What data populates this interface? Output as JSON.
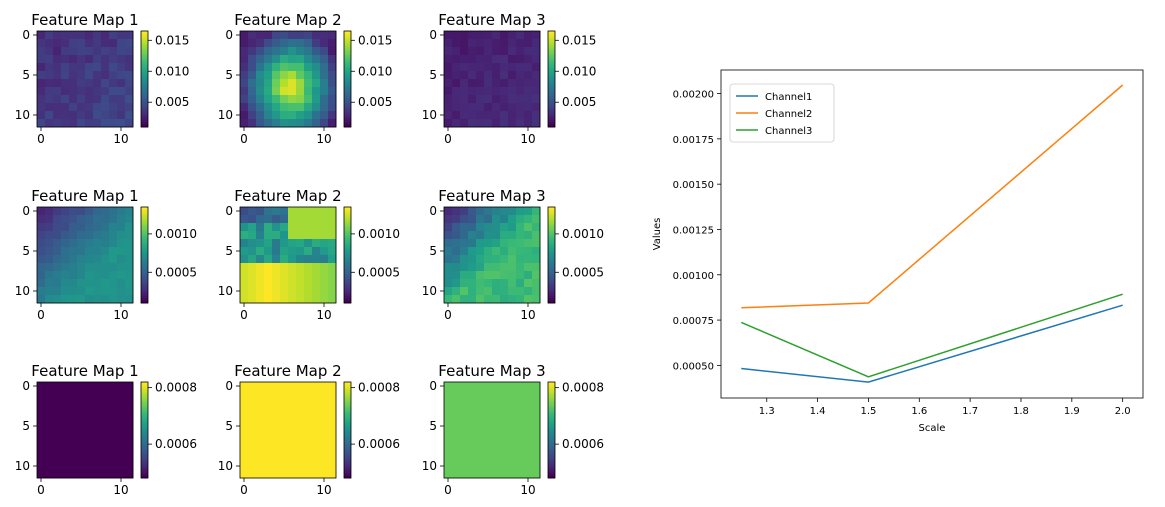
{
  "chart_data": [
    {
      "type": "heatmap",
      "title": "Feature Map 1",
      "row": 0,
      "xticks": [
        0,
        10
      ],
      "yticks": [
        0,
        5,
        10
      ],
      "colorbar_ticks": [
        "0.005",
        "0.010",
        "0.015"
      ],
      "vmin": 0.001,
      "vmax": 0.0165,
      "pattern": "uniform_low",
      "value_range": [
        0.001,
        0.006
      ]
    },
    {
      "type": "heatmap",
      "title": "Feature Map 2",
      "row": 0,
      "xticks": [
        0,
        10
      ],
      "yticks": [
        0,
        5,
        10
      ],
      "colorbar_ticks": [
        "0.005",
        "0.010",
        "0.015"
      ],
      "vmin": 0.001,
      "vmax": 0.0165,
      "pattern": "center_blob",
      "value_range": [
        0.002,
        0.0165
      ]
    },
    {
      "type": "heatmap",
      "title": "Feature Map 3",
      "row": 0,
      "xticks": [
        0,
        10
      ],
      "yticks": [
        0,
        5,
        10
      ],
      "colorbar_ticks": [
        "0.005",
        "0.010",
        "0.015"
      ],
      "vmin": 0.001,
      "vmax": 0.0165,
      "pattern": "uniform_low",
      "value_range": [
        0.001,
        0.004
      ]
    },
    {
      "type": "heatmap",
      "title": "Feature Map 1",
      "row": 1,
      "xticks": [
        0,
        10
      ],
      "yticks": [
        0,
        5,
        10
      ],
      "colorbar_ticks": [
        "0.0005",
        "0.0010"
      ],
      "vmin": 0.0001,
      "vmax": 0.00135,
      "pattern": "diagonal_low_topleft",
      "value_range": [
        0.0002,
        0.0008
      ]
    },
    {
      "type": "heatmap",
      "title": "Feature Map 2",
      "row": 1,
      "xticks": [
        0,
        10
      ],
      "yticks": [
        0,
        5,
        10
      ],
      "colorbar_ticks": [
        "0.0005",
        "0.0010"
      ],
      "vmin": 0.0001,
      "vmax": 0.00135,
      "pattern": "bottom_and_topright_high",
      "value_range": [
        0.0002,
        0.00135
      ]
    },
    {
      "type": "heatmap",
      "title": "Feature Map 3",
      "row": 1,
      "xticks": [
        0,
        10
      ],
      "yticks": [
        0,
        5,
        10
      ],
      "colorbar_ticks": [
        "0.0005",
        "0.0010"
      ],
      "vmin": 0.0001,
      "vmax": 0.00135,
      "pattern": "diagonal_mid",
      "value_range": [
        0.0002,
        0.0011
      ]
    },
    {
      "type": "heatmap",
      "title": "Feature Map 1",
      "row": 2,
      "xticks": [
        0,
        10
      ],
      "yticks": [
        0,
        5,
        10
      ],
      "colorbar_ticks": [
        "0.0006",
        "0.0008"
      ],
      "vmin": 0.00048,
      "vmax": 0.00082,
      "pattern": "constant",
      "value_range": [
        0.00048,
        0.00048
      ]
    },
    {
      "type": "heatmap",
      "title": "Feature Map 2",
      "row": 2,
      "xticks": [
        0,
        10
      ],
      "yticks": [
        0,
        5,
        10
      ],
      "colorbar_ticks": [
        "0.0006",
        "0.0008"
      ],
      "vmin": 0.00048,
      "vmax": 0.00082,
      "pattern": "constant",
      "value_range": [
        0.00082,
        0.00082
      ]
    },
    {
      "type": "heatmap",
      "title": "Feature Map 3",
      "row": 2,
      "xticks": [
        0,
        10
      ],
      "yticks": [
        0,
        5,
        10
      ],
      "colorbar_ticks": [
        "0.0006",
        "0.0008"
      ],
      "vmin": 0.00048,
      "vmax": 0.00082,
      "pattern": "constant",
      "value_range": [
        0.00074,
        0.00074
      ]
    },
    {
      "type": "line",
      "xlabel": "Scale",
      "ylabel": "Values",
      "x": [
        1.25,
        1.5,
        2.0
      ],
      "xlim": [
        1.21,
        2.04
      ],
      "ylim": [
        0.00032,
        0.00213
      ],
      "xticks": [
        "1.3",
        "1.4",
        "1.5",
        "1.6",
        "1.7",
        "1.8",
        "1.9",
        "2.0"
      ],
      "yticks": [
        "0.00050",
        "0.00075",
        "0.00100",
        "0.00125",
        "0.00150",
        "0.00175",
        "0.00200"
      ],
      "legend": "top-left",
      "series": [
        {
          "name": "Channel1",
          "color": "#1f77b4",
          "values": [
            0.000483,
            0.000408,
            0.000832
          ]
        },
        {
          "name": "Channel2",
          "color": "#ff7f0e",
          "values": [
            0.000818,
            0.000844,
            0.002047
          ]
        },
        {
          "name": "Channel3",
          "color": "#2ca02c",
          "values": [
            0.000737,
            0.000437,
            0.000893
          ]
        }
      ]
    }
  ]
}
